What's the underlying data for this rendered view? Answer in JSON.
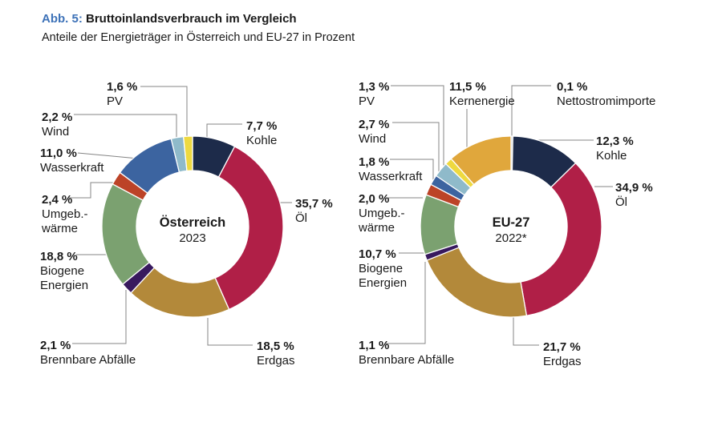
{
  "header": {
    "label": "Abb. 5:",
    "title": "Bruttoinlandsverbrauch im Vergleich",
    "subtitle": "Anteile der Energieträger in Österreich und EU-27 in Prozent",
    "label_color": "#3d72b8"
  },
  "chart_data": [
    {
      "type": "pie",
      "style": "donut",
      "title": "Österreich",
      "subtitle": "2023",
      "unit": "percent",
      "start_angle": "top-clockwise",
      "segments": [
        {
          "name": "Kohle",
          "value": 7.7,
          "display": "7,7 %",
          "color": "#1d2b4a"
        },
        {
          "name": "Öl",
          "value": 35.7,
          "display": "35,7 %",
          "color": "#b01f47"
        },
        {
          "name": "Erdgas",
          "value": 18.5,
          "display": "18,5 %",
          "color": "#b3893a"
        },
        {
          "name": "Brennbare Abfälle",
          "value": 2.1,
          "display": "2,1 %",
          "color": "#38195e"
        },
        {
          "name": "Biogene Energien",
          "value": 18.8,
          "display": "18,8 %",
          "color": "#7ba170"
        },
        {
          "name": "Umgeb.-wärme",
          "value": 2.4,
          "display": "2,4 %",
          "color": "#bc4327"
        },
        {
          "name": "Wasserkraft",
          "value": 11.0,
          "display": "11,0 %",
          "color": "#3c64a0"
        },
        {
          "name": "Wind",
          "value": 2.2,
          "display": "2,2 %",
          "color": "#8fbaca"
        },
        {
          "name": "PV",
          "value": 1.6,
          "display": "1,6 %",
          "color": "#eed940"
        }
      ]
    },
    {
      "type": "pie",
      "style": "donut",
      "title": "EU-27",
      "subtitle": "2022*",
      "unit": "percent",
      "start_angle": "top-clockwise",
      "segments": [
        {
          "name": "Nettostromimporte",
          "value": 0.1,
          "display": "0,1 %",
          "color": "#c4c9d1"
        },
        {
          "name": "Kohle",
          "value": 12.3,
          "display": "12,3 %",
          "color": "#1d2b4a"
        },
        {
          "name": "Öl",
          "value": 34.9,
          "display": "34,9 %",
          "color": "#b01f47"
        },
        {
          "name": "Erdgas",
          "value": 21.7,
          "display": "21,7 %",
          "color": "#b3893a"
        },
        {
          "name": "Brennbare Abfälle",
          "value": 1.1,
          "display": "1,1 %",
          "color": "#38195e"
        },
        {
          "name": "Biogene Energien",
          "value": 10.7,
          "display": "10,7 %",
          "color": "#7ba170"
        },
        {
          "name": "Umgeb.-wärme",
          "value": 2.0,
          "display": "2,0 %",
          "color": "#bc4327"
        },
        {
          "name": "Wasserkraft",
          "value": 1.8,
          "display": "1,8 %",
          "color": "#3c64a0"
        },
        {
          "name": "Wind",
          "value": 2.7,
          "display": "2,7 %",
          "color": "#8fbaca"
        },
        {
          "name": "PV",
          "value": 1.3,
          "display": "1,3 %",
          "color": "#eed940"
        },
        {
          "name": "Kernenergie",
          "value": 11.5,
          "display": "11,5 %",
          "color": "#e0a73c"
        }
      ]
    }
  ]
}
